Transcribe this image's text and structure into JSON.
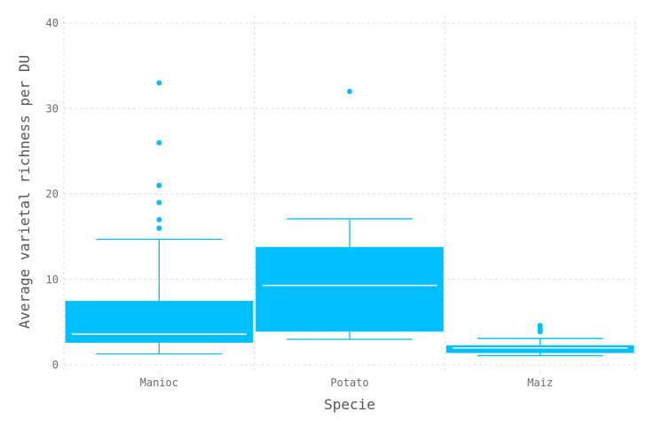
{
  "chart_data": {
    "type": "box",
    "xlabel": "Specie",
    "ylabel": "Average varietal richness per DU",
    "ylim": [
      0,
      40
    ],
    "yticks": [
      0,
      10,
      20,
      30,
      40
    ],
    "grid": true,
    "color": "#00BFFF",
    "categories": [
      "Manioc",
      "Potato",
      "Maiz"
    ],
    "boxes": [
      {
        "name": "Manioc",
        "whisker_low": 1.3,
        "q1": 2.6,
        "median": 3.6,
        "q3": 7.5,
        "whisker_high": 14.7,
        "outliers": [
          16,
          17,
          19,
          21,
          26,
          33
        ]
      },
      {
        "name": "Potato",
        "whisker_low": 3.0,
        "q1": 3.9,
        "median": 9.3,
        "q3": 13.8,
        "whisker_high": 17.1,
        "outliers": [
          32
        ]
      },
      {
        "name": "Maiz",
        "whisker_low": 1.1,
        "q1": 1.4,
        "median": 2.0,
        "q3": 2.3,
        "whisker_high": 3.1,
        "outliers": [
          3.9,
          4.2,
          4.6
        ]
      }
    ]
  }
}
